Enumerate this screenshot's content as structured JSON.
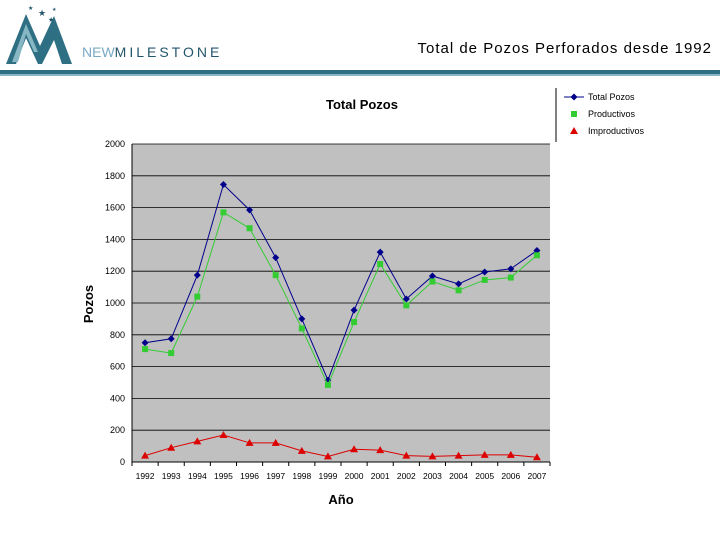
{
  "header": {
    "brand_prefix": "NEW",
    "brand_name": "MILESTONE",
    "slide_title": "Total de Pozos Perforados desde  1992"
  },
  "colors": {
    "header_rule": "#2f6f83",
    "total_series": "#00008b",
    "productivos_series": "#33cc33",
    "improductivos_series": "#dd0000",
    "plot_bg": "#c0c0c0"
  },
  "chart_data": {
    "type": "line",
    "title": "Total Pozos",
    "xlabel": "Año",
    "ylabel": "Pozos",
    "ylim": [
      0,
      2000
    ],
    "yticks": [
      0,
      200,
      400,
      600,
      800,
      1000,
      1200,
      1400,
      1600,
      1800,
      2000
    ],
    "ytick_labels": [
      "0",
      "200",
      "400",
      "600",
      "800",
      "1000",
      "1200",
      "1400",
      "1600",
      "1800",
      "2000"
    ],
    "grid": true,
    "legend_position": "top-right",
    "categories": [
      "1992",
      "1993",
      "1994",
      "1995",
      "1996",
      "1997",
      "1998",
      "1999",
      "2000",
      "2001",
      "2002",
      "2003",
      "2004",
      "2005",
      "2006",
      "2007"
    ],
    "series": [
      {
        "name": "Total Pozos",
        "marker": "diamond",
        "color": "#00008b",
        "values": [
          750,
          775,
          1175,
          1745,
          1585,
          1285,
          900,
          515,
          955,
          1320,
          1025,
          1170,
          1120,
          1195,
          1215,
          1330
        ]
      },
      {
        "name": "Productivos",
        "marker": "square",
        "color": "#33cc33",
        "values": [
          710,
          685,
          1040,
          1570,
          1470,
          1175,
          840,
          485,
          880,
          1245,
          985,
          1135,
          1080,
          1145,
          1160,
          1300
        ]
      },
      {
        "name": "Improductivos",
        "marker": "triangle",
        "color": "#dd0000",
        "values": [
          40,
          90,
          130,
          170,
          120,
          120,
          70,
          35,
          80,
          75,
          40,
          35,
          40,
          45,
          45,
          30
        ]
      }
    ]
  }
}
